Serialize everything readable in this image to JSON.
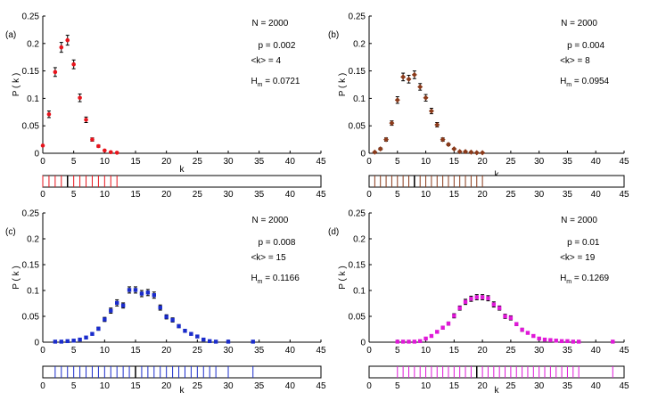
{
  "figure": {
    "xlabel": "k",
    "ylabel": "P ( k )"
  },
  "chart_data": [
    {
      "panel_label": "(a)",
      "type": "scatter",
      "color": "#e8141c",
      "marker": "circle",
      "annotations": {
        "n": "N = 2000",
        "p": "p = 0.002",
        "k": "<k> = 4",
        "h_prefix": "H",
        "h_sub": "m",
        "h_value": " = 0.0721"
      },
      "x": [
        0,
        1,
        2,
        3,
        4,
        5,
        6,
        7,
        8,
        9,
        10,
        11,
        12
      ],
      "y": [
        0.014,
        0.071,
        0.148,
        0.193,
        0.206,
        0.162,
        0.101,
        0.061,
        0.025,
        0.013,
        0.005,
        0.002,
        0.001
      ],
      "err": [
        0,
        0.006,
        0.008,
        0.009,
        0.009,
        0.008,
        0.007,
        0.005,
        0.003,
        0.002,
        0,
        0,
        0
      ],
      "mean_k": 4,
      "xlim": [
        0,
        45
      ],
      "ylim": [
        0,
        0.25
      ],
      "xticks": [
        "0",
        "5",
        "10",
        "15",
        "20",
        "25",
        "30",
        "35",
        "40",
        "45"
      ],
      "yticks": [
        "0",
        "0.05",
        "0.1",
        "0.15",
        "0.2",
        "0.25"
      ]
    },
    {
      "panel_label": "(b)",
      "type": "scatter",
      "color": "#8b3a1a",
      "marker": "diamond",
      "annotations": {
        "n": "N = 2000",
        "p": "p = 0.004",
        "k": "<k> = 8",
        "h_prefix": "H",
        "h_sub": "m",
        "h_value": " = 0.0954"
      },
      "x": [
        1,
        2,
        3,
        4,
        5,
        6,
        7,
        8,
        9,
        10,
        11,
        12,
        13,
        14,
        15,
        16,
        17,
        18,
        19,
        20
      ],
      "y": [
        0.002,
        0.008,
        0.025,
        0.055,
        0.097,
        0.139,
        0.135,
        0.143,
        0.121,
        0.101,
        0.077,
        0.052,
        0.025,
        0.016,
        0.008,
        0.003,
        0.003,
        0.002,
        0.001,
        0.001
      ],
      "err": [
        0,
        0.002,
        0.003,
        0.004,
        0.006,
        0.007,
        0.007,
        0.007,
        0.006,
        0.006,
        0.005,
        0.004,
        0.003,
        0.002,
        0.001,
        0,
        0,
        0,
        0,
        0
      ],
      "mean_k": 8,
      "xlim": [
        0,
        45
      ],
      "ylim": [
        0,
        0.25
      ],
      "xticks": [
        "0",
        "5",
        "10",
        "15",
        "20",
        "25",
        "30",
        "35",
        "40",
        "45"
      ],
      "yticks": [
        "0",
        "0.05",
        "0.1",
        "0.15",
        "0.2",
        "0.25"
      ]
    },
    {
      "panel_label": "(c)",
      "type": "scatter",
      "color": "#1a2ccc",
      "marker": "square",
      "annotations": {
        "n": "N = 2000",
        "p": "p = 0.008",
        "k": "<k> = 15",
        "h_prefix": "H",
        "h_sub": "m",
        "h_value": " = 0.1166"
      },
      "x": [
        2,
        3,
        4,
        5,
        6,
        7,
        8,
        9,
        10,
        11,
        12,
        13,
        14,
        15,
        16,
        17,
        18,
        19,
        20,
        21,
        22,
        23,
        24,
        25,
        26,
        27,
        28,
        30,
        34
      ],
      "y": [
        0.001,
        0.001,
        0.002,
        0.003,
        0.005,
        0.009,
        0.016,
        0.026,
        0.044,
        0.061,
        0.076,
        0.071,
        0.101,
        0.101,
        0.094,
        0.096,
        0.091,
        0.067,
        0.049,
        0.043,
        0.031,
        0.022,
        0.016,
        0.011,
        0.005,
        0.002,
        0.001,
        0.001,
        0.001
      ],
      "err": [
        0,
        0,
        0,
        0,
        0,
        0.001,
        0.002,
        0.003,
        0.004,
        0.005,
        0.006,
        0.005,
        0.006,
        0.006,
        0.006,
        0.006,
        0.006,
        0.005,
        0.004,
        0.004,
        0.003,
        0.003,
        0.002,
        0.002,
        0.001,
        0,
        0,
        0,
        0
      ],
      "mean_k": 15,
      "xlim": [
        0,
        45
      ],
      "ylim": [
        0,
        0.25
      ],
      "xticks": [
        "0",
        "5",
        "10",
        "15",
        "20",
        "25",
        "30",
        "35",
        "40",
        "45"
      ],
      "yticks": [
        "0",
        "0.05",
        "0.1",
        "0.15",
        "0.2",
        "0.25"
      ]
    },
    {
      "panel_label": "(d)",
      "type": "scatter",
      "color": "#e018d8",
      "marker": "square",
      "annotations": {
        "n": "N = 2000",
        "p": "p = 0.01",
        "k": "<k> = 19",
        "h_prefix": "H",
        "h_sub": "m",
        "h_value": " = 0.1269"
      },
      "x": [
        5,
        6,
        7,
        8,
        9,
        10,
        11,
        12,
        13,
        14,
        15,
        16,
        17,
        18,
        19,
        20,
        21,
        22,
        23,
        24,
        25,
        26,
        27,
        28,
        29,
        30,
        31,
        32,
        33,
        34,
        35,
        36,
        37,
        43
      ],
      "y": [
        0.001,
        0.001,
        0.001,
        0.001,
        0.002,
        0.007,
        0.012,
        0.02,
        0.028,
        0.036,
        0.051,
        0.066,
        0.078,
        0.084,
        0.087,
        0.087,
        0.085,
        0.073,
        0.066,
        0.05,
        0.047,
        0.035,
        0.024,
        0.018,
        0.012,
        0.007,
        0.005,
        0.004,
        0.003,
        0.002,
        0.002,
        0.001,
        0.001,
        0.001
      ],
      "err": [
        0,
        0,
        0,
        0,
        0,
        0.001,
        0.002,
        0.002,
        0.003,
        0.003,
        0.004,
        0.004,
        0.005,
        0.005,
        0.005,
        0.005,
        0.005,
        0.005,
        0.004,
        0.004,
        0.004,
        0.003,
        0.003,
        0.002,
        0.002,
        0.001,
        0.001,
        0,
        0,
        0,
        0,
        0,
        0,
        0
      ],
      "mean_k": 19,
      "xlim": [
        0,
        45
      ],
      "ylim": [
        0,
        0.25
      ],
      "xticks": [
        "0",
        "5",
        "10",
        "15",
        "20",
        "25",
        "30",
        "35",
        "40",
        "45"
      ],
      "yticks": [
        "0",
        "0.05",
        "0.1",
        "0.15",
        "0.2",
        "0.25"
      ]
    }
  ]
}
